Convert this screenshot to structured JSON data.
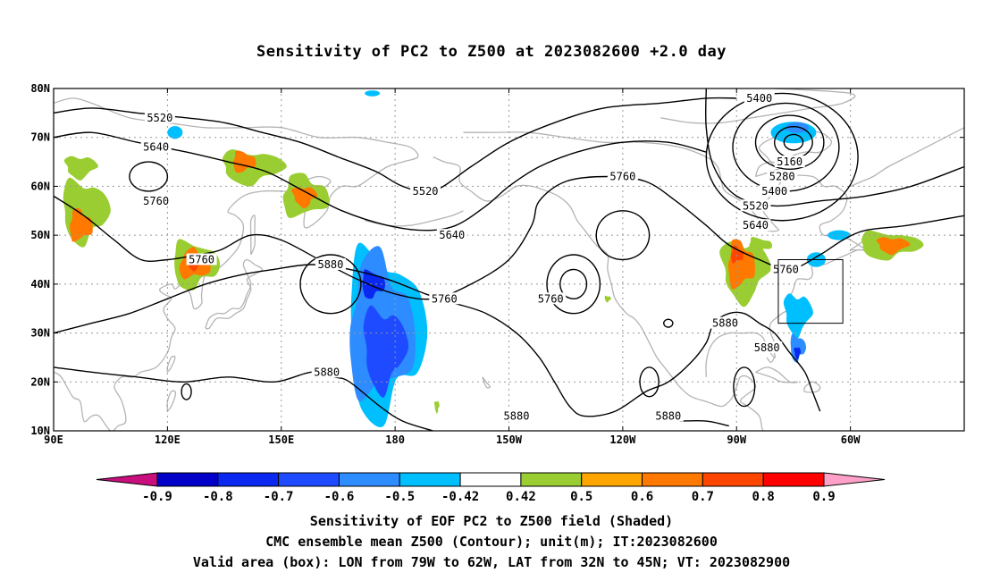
{
  "title": "Sensitivity of PC2 to Z500 at 2023082600 +2.0 day",
  "axes": {
    "lat_labels": [
      "80N",
      "70N",
      "60N",
      "50N",
      "40N",
      "30N",
      "20N",
      "10N"
    ],
    "lon_labels": [
      "90E",
      "120E",
      "150E",
      "180",
      "150W",
      "120W",
      "90W",
      "60W"
    ]
  },
  "contours": {
    "labels": [
      {
        "text": "5520",
        "lon": 118,
        "lat": 74
      },
      {
        "text": "5640",
        "lon": 117,
        "lat": 68
      },
      {
        "text": "5760",
        "lon": 117,
        "lat": 57
      },
      {
        "text": "5760",
        "lon": 129,
        "lat": 45
      },
      {
        "text": "5880",
        "lon": 163,
        "lat": 44
      },
      {
        "text": "5520",
        "lon": 188,
        "lat": 59
      },
      {
        "text": "5640",
        "lon": 195,
        "lat": 50
      },
      {
        "text": "5760",
        "lon": 193,
        "lat": 37
      },
      {
        "text": "5760",
        "lon": 221,
        "lat": 37
      },
      {
        "text": "5760",
        "lon": 240,
        "lat": 62
      },
      {
        "text": "5880",
        "lon": 162,
        "lat": 22
      },
      {
        "text": "5880",
        "lon": 212,
        "lat": 13
      },
      {
        "text": "5880",
        "lon": 252,
        "lat": 13
      },
      {
        "text": "5880",
        "lon": 267,
        "lat": 32
      },
      {
        "text": "5880",
        "lon": 278,
        "lat": 27
      },
      {
        "text": "5400",
        "lon": 276,
        "lat": 78
      },
      {
        "text": "5160",
        "lon": 284,
        "lat": 65
      },
      {
        "text": "5280",
        "lon": 282,
        "lat": 62
      },
      {
        "text": "5400",
        "lon": 280,
        "lat": 59
      },
      {
        "text": "5520",
        "lon": 275,
        "lat": 56
      },
      {
        "text": "5640",
        "lon": 275,
        "lat": 52
      },
      {
        "text": "5760",
        "lon": 283,
        "lat": 43
      }
    ]
  },
  "colorbar": {
    "colors": [
      "#c80f7d",
      "#0000c8",
      "#0a28f0",
      "#1e4bff",
      "#2d8cff",
      "#00bfff",
      "#ffffff",
      "#9acd32",
      "#ffa500",
      "#ff7800",
      "#ff4600",
      "#ff0000",
      "#ffa0c8"
    ],
    "labels": [
      "-0.9",
      "-0.8",
      "-0.7",
      "-0.6",
      "-0.5",
      "-0.42",
      "0.42",
      "0.5",
      "0.6",
      "0.7",
      "0.8",
      "0.9"
    ]
  },
  "valid_box": {
    "lon_min": -79,
    "lon_max": -62,
    "lat_min": 32,
    "lat_max": 45
  },
  "captions": {
    "line1": "Sensitivity of EOF PC2 to Z500 field (Shaded)",
    "line2": "CMC ensemble mean Z500 (Contour); unit(m); IT:2023082600",
    "line3": "Valid area (box): LON from 79W to 62W, LAT from 32N to 45N; VT: 2023082900"
  }
}
